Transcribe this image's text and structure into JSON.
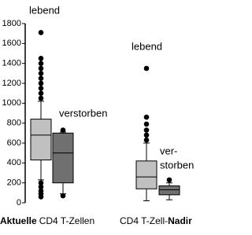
{
  "chart_data": {
    "type": "box",
    "ylim": [
      0,
      1800
    ],
    "yticks": [
      0,
      200,
      400,
      600,
      800,
      1000,
      1200,
      1400,
      1600,
      1800
    ],
    "groups": [
      {
        "label": [
          {
            "text": "Aktuelle",
            "bold": true
          },
          {
            "text": "CD4 T-Zellen",
            "bold": false
          }
        ],
        "boxes": [
          {
            "name": [
              "lebend"
            ],
            "color": "#c0c0c0",
            "min": 230,
            "q1": 430,
            "median": 680,
            "q3": 840,
            "max": 1020,
            "outliers": [
              1050,
              1100,
              1150,
              1200,
              1250,
              1300,
              1350,
              1400,
              1450,
              1710,
              200,
              160,
              120,
              90,
              60
            ]
          },
          {
            "name": [
              "verstorben"
            ],
            "color": "#707070",
            "min": 90,
            "q1": 200,
            "median": 500,
            "q3": 700,
            "max": 710,
            "outliers": [
              730,
              70
            ]
          }
        ]
      },
      {
        "label": [
          {
            "text": "CD4 T-Zell-",
            "bold": false
          },
          {
            "text": "Nadir",
            "bold": true
          }
        ],
        "boxes": [
          {
            "name": [
              "lebend"
            ],
            "color": "#c0c0c0",
            "min": 20,
            "q1": 140,
            "median": 260,
            "q3": 420,
            "max": 600,
            "outliers": [
              630,
              680,
              730,
              790,
              860,
              1350
            ]
          },
          {
            "name": [
              "ver-",
              "storben"
            ],
            "color": "#707070",
            "min": 30,
            "q1": 80,
            "median": 130,
            "q3": 170,
            "max": 200,
            "outliers": [
              230
            ]
          }
        ]
      }
    ]
  }
}
